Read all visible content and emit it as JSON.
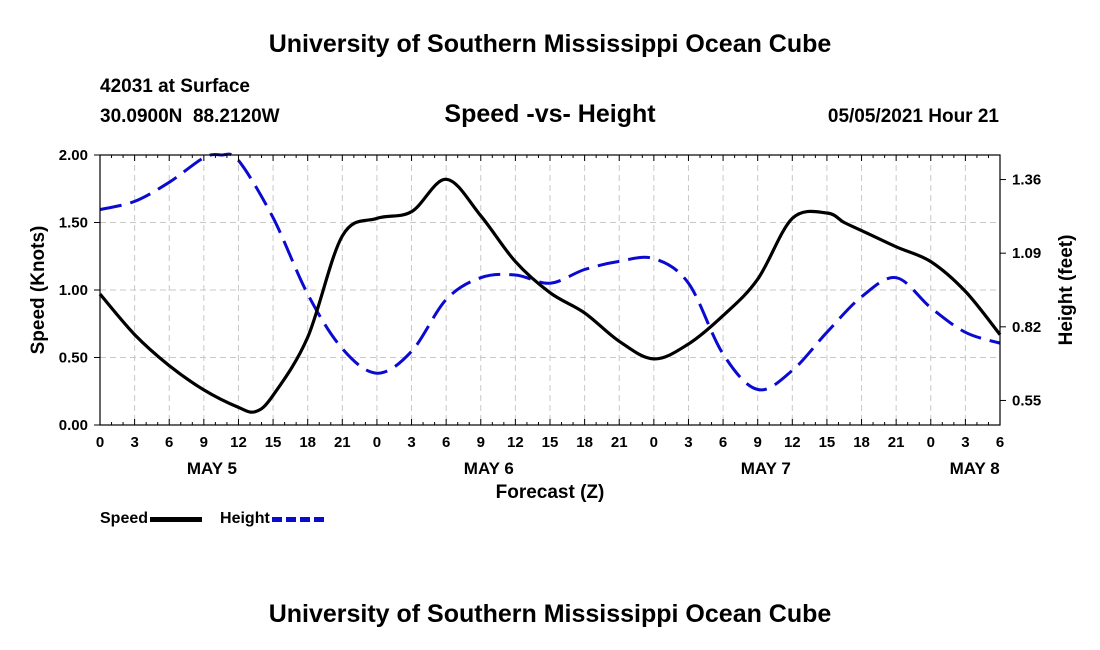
{
  "header": {
    "title": "University of Southern Mississippi Ocean Cube",
    "station": "42031 at Surface",
    "coordinates": "30.0900N  88.2120W",
    "datetime": "05/05/2021 Hour 21"
  },
  "footer": {
    "title": "University of Southern Mississippi Ocean Cube"
  },
  "chart_data": {
    "type": "line",
    "title": "Speed -vs- Height",
    "xlabel": "Forecast (Z)",
    "ylabel": "Speed (Knots)",
    "y2label": "Height (feet)",
    "grid": true,
    "legend_position": "bottom-left",
    "xlim": [
      0,
      78
    ],
    "ylim": [
      0,
      2
    ],
    "y2lim": [
      0.46,
      1.45
    ],
    "x_ticks": [
      0,
      3,
      6,
      9,
      12,
      15,
      18,
      21,
      24,
      27,
      30,
      33,
      36,
      39,
      42,
      45,
      48,
      51,
      54,
      57,
      60,
      63,
      66,
      69,
      72,
      75,
      78
    ],
    "x_tick_labels": [
      "0",
      "3",
      "6",
      "9",
      "12",
      "15",
      "18",
      "21",
      "0",
      "3",
      "6",
      "9",
      "12",
      "15",
      "18",
      "21",
      "0",
      "3",
      "6",
      "9",
      "12",
      "15",
      "18",
      "21",
      "0",
      "3",
      "6"
    ],
    "day_labels": [
      {
        "label": "MAY 5",
        "x": 9.7
      },
      {
        "label": "MAY 6",
        "x": 33.7
      },
      {
        "label": "MAY 7",
        "x": 57.7
      },
      {
        "label": "MAY 8",
        "x": 75.8
      }
    ],
    "y_ticks": [
      0,
      0.5,
      1.0,
      1.5,
      2.0
    ],
    "y_tick_labels": [
      "0.00",
      "0.50",
      "1.00",
      "1.50",
      "2.00"
    ],
    "y2_ticks": [
      0.55,
      0.82,
      1.09,
      1.36
    ],
    "y2_tick_labels": [
      "0.55",
      "0.82",
      "1.09",
      "1.36"
    ],
    "series": [
      {
        "name": "Speed",
        "axis": "left",
        "color": "#000000",
        "style": "solid",
        "x": [
          0,
          3,
          6,
          9,
          12,
          13.5,
          15,
          18,
          21,
          24,
          27,
          30,
          33,
          36,
          39,
          42,
          45,
          48,
          51,
          54,
          57,
          60,
          63,
          64.5,
          66,
          69,
          72,
          75,
          78
        ],
        "values": [
          0.97,
          0.67,
          0.44,
          0.26,
          0.13,
          0.1,
          0.22,
          0.65,
          1.4,
          1.53,
          1.58,
          1.82,
          1.55,
          1.21,
          0.98,
          0.83,
          0.62,
          0.49,
          0.6,
          0.81,
          1.08,
          1.53,
          1.57,
          1.5,
          1.44,
          1.32,
          1.21,
          0.99,
          0.67
        ]
      },
      {
        "name": "Height",
        "axis": "right",
        "color": "#0a0ad0",
        "style": "dashed",
        "x": [
          0,
          3,
          6,
          9,
          10.5,
          12,
          15,
          18,
          21,
          24,
          27,
          30,
          33,
          36,
          39,
          42,
          45,
          48,
          51,
          54,
          57,
          60,
          63,
          66,
          69,
          72,
          75,
          78
        ],
        "values": [
          1.25,
          1.28,
          1.35,
          1.44,
          1.45,
          1.43,
          1.22,
          0.94,
          0.74,
          0.65,
          0.73,
          0.92,
          1.0,
          1.01,
          0.98,
          1.03,
          1.06,
          1.07,
          0.98,
          0.72,
          0.59,
          0.66,
          0.8,
          0.93,
          1.0,
          0.89,
          0.8,
          0.76
        ]
      }
    ]
  }
}
